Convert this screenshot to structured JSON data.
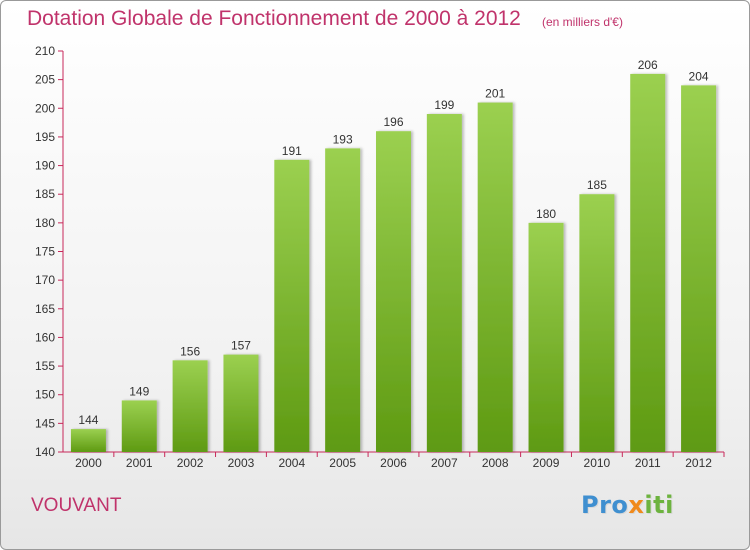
{
  "header": {
    "title": "Dotation Globale de Fonctionnement de 2000 à 2012",
    "subtitle": "(en milliers d'€)"
  },
  "footer": {
    "commune": "VOUVANT",
    "logo_part1": "Pro",
    "logo_part2": "x",
    "logo_part3": "iti"
  },
  "colors": {
    "title": "#c0336b",
    "bar_top": "#9bd050",
    "bar_bottom": "#5e9a12",
    "axis": "#c8285a"
  },
  "chart_data": {
    "type": "bar",
    "title": "Dotation Globale de Fonctionnement de 2000 à 2012",
    "subtitle": "(en milliers d'€)",
    "categories": [
      "2000",
      "2001",
      "2002",
      "2003",
      "2004",
      "2005",
      "2006",
      "2007",
      "2008",
      "2009",
      "2010",
      "2011",
      "2012"
    ],
    "values": [
      144,
      149,
      156,
      157,
      191,
      193,
      196,
      199,
      201,
      180,
      185,
      206,
      204
    ],
    "ylim": [
      140,
      210
    ],
    "yticks": [
      140,
      145,
      150,
      155,
      160,
      165,
      170,
      175,
      180,
      185,
      190,
      195,
      200,
      205,
      210
    ],
    "grid": false,
    "legend": "none"
  }
}
